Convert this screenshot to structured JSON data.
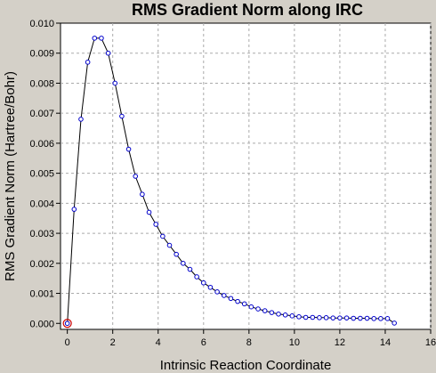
{
  "chart_data": {
    "type": "line",
    "title": "RMS Gradient Norm along IRC",
    "xlabel": "Intrinsic Reaction Coordinate",
    "ylabel": "RMS Gradient Norm (Hartree/Bohr)",
    "xlim": [
      -0.3,
      16
    ],
    "ylim": [
      -0.0002,
      0.01
    ],
    "xticks": [
      "0",
      "2",
      "4",
      "6",
      "8",
      "10",
      "12",
      "14",
      "16"
    ],
    "yticks": [
      "0.000",
      "0.001",
      "0.002",
      "0.003",
      "0.004",
      "0.005",
      "0.006",
      "0.007",
      "0.008",
      "0.009",
      "0.010"
    ],
    "grid": true,
    "highlighted_point": [
      0.0,
      0.0
    ],
    "x": [
      0.0,
      0.3,
      0.6,
      0.9,
      1.2,
      1.5,
      1.8,
      2.1,
      2.4,
      2.7,
      3.0,
      3.3,
      3.6,
      3.9,
      4.2,
      4.5,
      4.8,
      5.1,
      5.4,
      5.7,
      6.0,
      6.3,
      6.6,
      6.9,
      7.2,
      7.5,
      7.8,
      8.1,
      8.4,
      8.7,
      9.0,
      9.3,
      9.6,
      9.9,
      10.2,
      10.5,
      10.8,
      11.1,
      11.4,
      11.7,
      12.0,
      12.3,
      12.6,
      12.9,
      13.2,
      13.5,
      13.8,
      14.1,
      14.4
    ],
    "values": [
      0.0,
      0.0038,
      0.0068,
      0.0087,
      0.0095,
      0.0095,
      0.009,
      0.008,
      0.0069,
      0.0058,
      0.0049,
      0.0043,
      0.0037,
      0.0033,
      0.0029,
      0.0026,
      0.0023,
      0.002,
      0.0018,
      0.00155,
      0.00135,
      0.0012,
      0.00105,
      0.00093,
      0.00083,
      0.00073,
      0.00065,
      0.00055,
      0.00048,
      0.00042,
      0.00036,
      0.00031,
      0.00028,
      0.00025,
      0.00022,
      0.0002,
      0.0002,
      0.00019,
      0.00019,
      0.00018,
      0.00018,
      0.00018,
      0.00017,
      0.00017,
      0.00017,
      0.00016,
      0.00016,
      0.00016,
      1e-05
    ]
  }
}
